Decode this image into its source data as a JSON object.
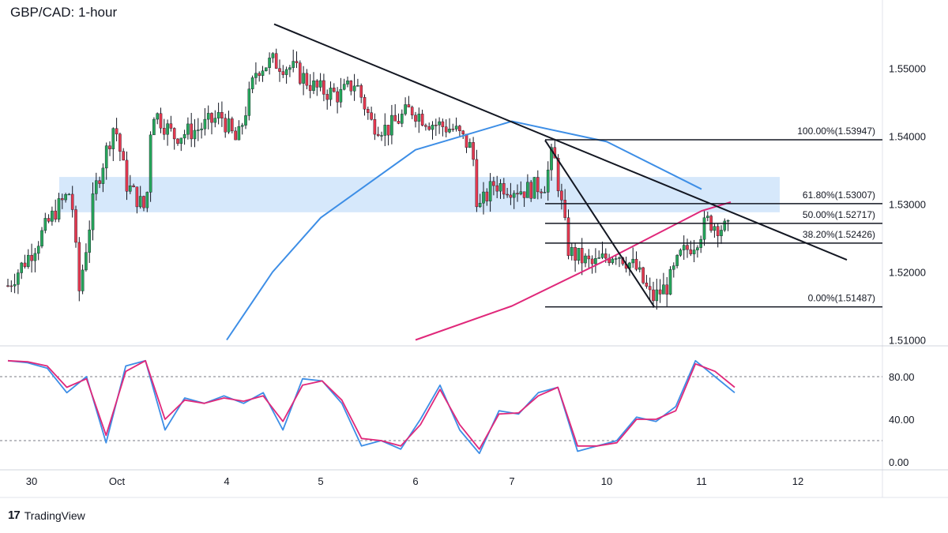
{
  "title": "GBP/CAD: 1-hour",
  "brand": {
    "logo": "17",
    "name": "TradingView"
  },
  "colors": {
    "bull": "#26a65b",
    "bear": "#e53950",
    "ma_fast": "#3d8ee6",
    "ma_slow": "#e0287a",
    "zone": "#d6e8fb",
    "trendline": "#131722",
    "stoch_k": "#3d8ee6",
    "stoch_d": "#e0287a"
  },
  "price_axis": {
    "ticks": [
      "1.55000",
      "1.54000",
      "1.53000",
      "1.52000",
      "1.51000"
    ]
  },
  "stoch_axis": {
    "ticks": [
      "80.00",
      "40.00",
      "0.00"
    ]
  },
  "x_axis": {
    "ticks": [
      "30",
      "Oct",
      "4",
      "5",
      "6",
      "7",
      "10",
      "11",
      "12"
    ]
  },
  "chart_data": [
    {
      "type": "candlestick",
      "title": "GBP/CAD: 1-hour",
      "ylim": [
        1.51,
        1.5575
      ],
      "price_range": {
        "Sep 29": [
          1.5155,
          1.534
        ],
        "Oct 3": [
          1.527,
          1.548
        ],
        "Oct 4": [
          1.537,
          1.555
        ],
        "Oct 5": [
          1.537,
          1.549
        ],
        "Oct 6": [
          1.526,
          1.5455
        ],
        "Oct 7": [
          1.5195,
          1.5395
        ],
        "Oct 10": [
          1.5155,
          1.5245
        ],
        "Oct 11": [
          1.523,
          1.529
        ]
      },
      "support_resistance_zone": [
        1.5288,
        1.534
      ],
      "fibonacci_levels": [
        {
          "label": "100.00%(1.53947)",
          "level": 100.0,
          "price": 1.53947
        },
        {
          "label": "61.80%(1.53007)",
          "level": 61.8,
          "price": 1.53007
        },
        {
          "label": "50.00%(1.52717)",
          "level": 50.0,
          "price": 1.52717
        },
        {
          "label": "38.20%(1.52426)",
          "level": 38.2,
          "price": 1.52426
        },
        {
          "label": "0.00%(1.51487)",
          "level": 0.0,
          "price": 1.51487
        }
      ],
      "moving_averages": [
        {
          "name": "",
          "color": "#3d8ee6",
          "points": [
            [
              "Oct 4",
              1.51
            ],
            [
              "Oct 4 PM",
              1.52
            ],
            [
              "Oct 5",
              1.528
            ],
            [
              "Oct 6",
              1.538
            ],
            [
              "Oct 7",
              1.5422
            ],
            [
              "Oct 10",
              1.5392
            ],
            [
              "Oct 11",
              1.5322
            ]
          ]
        },
        {
          "name": "",
          "color": "#e0287a",
          "points": [
            [
              "Oct 6",
              1.51
            ],
            [
              "Oct 7",
              1.515
            ],
            [
              "Oct 10",
              1.5218
            ],
            [
              "Oct 11",
              1.529
            ],
            [
              "Oct 11 PM",
              1.5303
            ]
          ]
        }
      ],
      "trendlines": [
        {
          "from": [
            "Oct 4",
            1.5565
          ],
          "to": [
            "Oct 12",
            1.5218
          ]
        },
        {
          "from": [
            "Oct 7",
            1.5394
          ],
          "to": [
            "Oct 10",
            1.5149
          ]
        }
      ]
    },
    {
      "type": "line",
      "title": "",
      "ylim": [
        0,
        100
      ],
      "reference_lines": [
        80,
        20
      ],
      "series": [
        {
          "name": "",
          "color": "#3d8ee6",
          "values": [
            95,
            93,
            88,
            65,
            80,
            18,
            90,
            95,
            30,
            60,
            55,
            62,
            55,
            65,
            30,
            78,
            76,
            55,
            15,
            20,
            12,
            40,
            72,
            30,
            8,
            48,
            45,
            65,
            70,
            10,
            15,
            20,
            42,
            38,
            52,
            95,
            80,
            65
          ]
        },
        {
          "name": "",
          "color": "#e0287a",
          "values": [
            95,
            94,
            90,
            70,
            78,
            25,
            85,
            95,
            40,
            58,
            55,
            60,
            57,
            62,
            38,
            72,
            76,
            58,
            22,
            20,
            15,
            35,
            68,
            35,
            12,
            45,
            46,
            62,
            70,
            15,
            15,
            18,
            40,
            40,
            48,
            92,
            85,
            70
          ]
        }
      ]
    }
  ]
}
